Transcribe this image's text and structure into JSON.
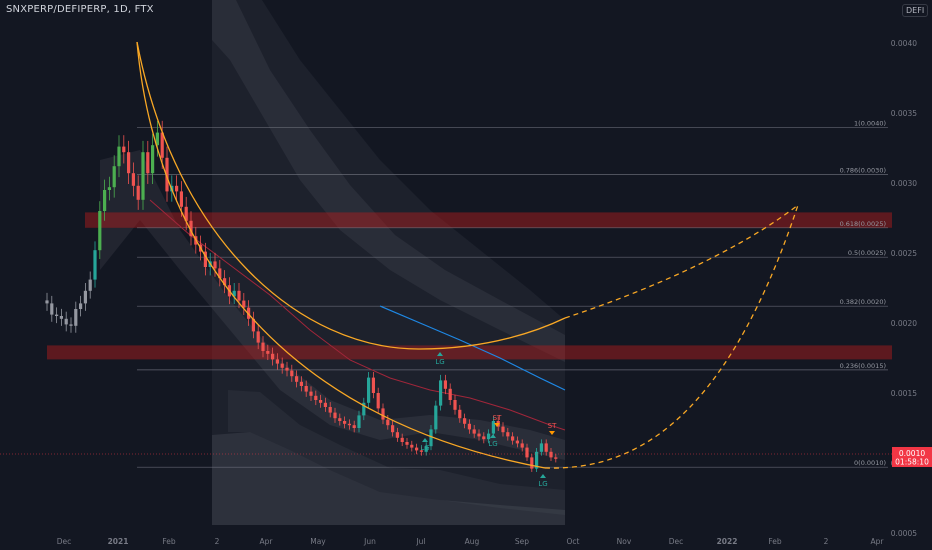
{
  "symbol": {
    "title": "SNXPERP/DEFIPERP, 1D, FTX",
    "currency_badge": "DEFI"
  },
  "colors": {
    "background": "#131722",
    "up_candle": "#26a69a",
    "up_candle_bright": "#4caf50",
    "down_candle": "#ef5350",
    "neutral_candle": "#9598a1",
    "fib_line": "#787b86",
    "zone_fill": "#b71c1c",
    "curve": "#f9a825",
    "ema_blue": "#1e88e5",
    "ema_red": "#a1263a",
    "band_fill": "#787b86",
    "price_tag_bg": "#f23645",
    "lg_label": "#26a69a",
    "st_label": "#ef5350"
  },
  "chart_data": {
    "type": "candlestick",
    "title": "SNXPERP/DEFIPERP, 1D, FTX",
    "ylim": [
      0.00048,
      0.00345
    ],
    "log_scale": false,
    "x_ticks": [
      "Dec",
      "2021",
      "Feb",
      "2",
      "Apr",
      "May",
      "Jun",
      "Jul",
      "Aug",
      "Sep",
      "Oct",
      "Nov",
      "Dec",
      "2022",
      "Feb",
      "2",
      "Apr"
    ],
    "y_ticks": [
      "0.0040",
      "0.0035",
      "0.0030",
      "0.0025",
      "0.0020",
      "0.0015",
      "0.0010",
      "0.0005"
    ],
    "current_price": "0.0010",
    "countdown": "01:58:10",
    "fib_levels": [
      {
        "label": "1(0.0040)",
        "value": 0.003395
      },
      {
        "label": "0.786(0.0030)",
        "value": 0.00306
      },
      {
        "label": "0.618(0.0025)",
        "value": 0.00268
      },
      {
        "label": "0.5(0.0025)",
        "value": 0.00247
      },
      {
        "label": "0.382(0.0020)",
        "value": 0.00212
      },
      {
        "label": "0.236(0.0015)",
        "value": 0.001665
      },
      {
        "label": "0(0.0010)",
        "value": 0.00097
      }
    ],
    "resistance_zones": [
      {
        "low": 0.00268,
        "high": 0.00279
      },
      {
        "low": 0.00174,
        "high": 0.00184
      }
    ],
    "signals": [
      {
        "label": "LG",
        "x_index": 73
      },
      {
        "label": "LG",
        "x_index": 90
      },
      {
        "label": "LG",
        "x_index": 103
      },
      {
        "label": "ST",
        "x_index": 100
      },
      {
        "label": "ST",
        "x_index": 111
      },
      {
        "label": "LG",
        "x_index": 106
      }
    ],
    "closes": [
      0.00214,
      0.00206,
      0.00205,
      0.00203,
      0.00199,
      0.00198,
      0.0021,
      0.00214,
      0.00223,
      0.00231,
      0.00252,
      0.0028,
      0.00295,
      0.00297,
      0.00312,
      0.00326,
      0.00322,
      0.00307,
      0.00298,
      0.00288,
      0.00322,
      0.00307,
      0.00327,
      0.00336,
      0.00318,
      0.00294,
      0.00298,
      0.00294,
      0.00283,
      0.00273,
      0.00262,
      0.00256,
      0.00251,
      0.0024,
      0.00244,
      0.00239,
      0.00232,
      0.00227,
      0.00219,
      0.00223,
      0.00216,
      0.00211,
      0.00203,
      0.00194,
      0.00186,
      0.0018,
      0.00178,
      0.00174,
      0.00171,
      0.00168,
      0.00166,
      0.00162,
      0.00158,
      0.00155,
      0.00151,
      0.00148,
      0.00145,
      0.00143,
      0.0014,
      0.00136,
      0.00132,
      0.0013,
      0.00128,
      0.00127,
      0.00125,
      0.00134,
      0.00143,
      0.00161,
      0.0015,
      0.00139,
      0.00131,
      0.00127,
      0.00122,
      0.00118,
      0.00115,
      0.00113,
      0.00111,
      0.00109,
      0.00108,
      0.00112,
      0.00124,
      0.00141,
      0.00159,
      0.00153,
      0.00145,
      0.00138,
      0.00132,
      0.00128,
      0.00124,
      0.00121,
      0.00119,
      0.00117,
      0.00121,
      0.0013,
      0.00126,
      0.00122,
      0.00119,
      0.00116,
      0.00114,
      0.00111,
      0.00104,
      0.00096,
      0.00108,
      0.00114,
      0.00108,
      0.00104,
      0.00103
    ]
  }
}
